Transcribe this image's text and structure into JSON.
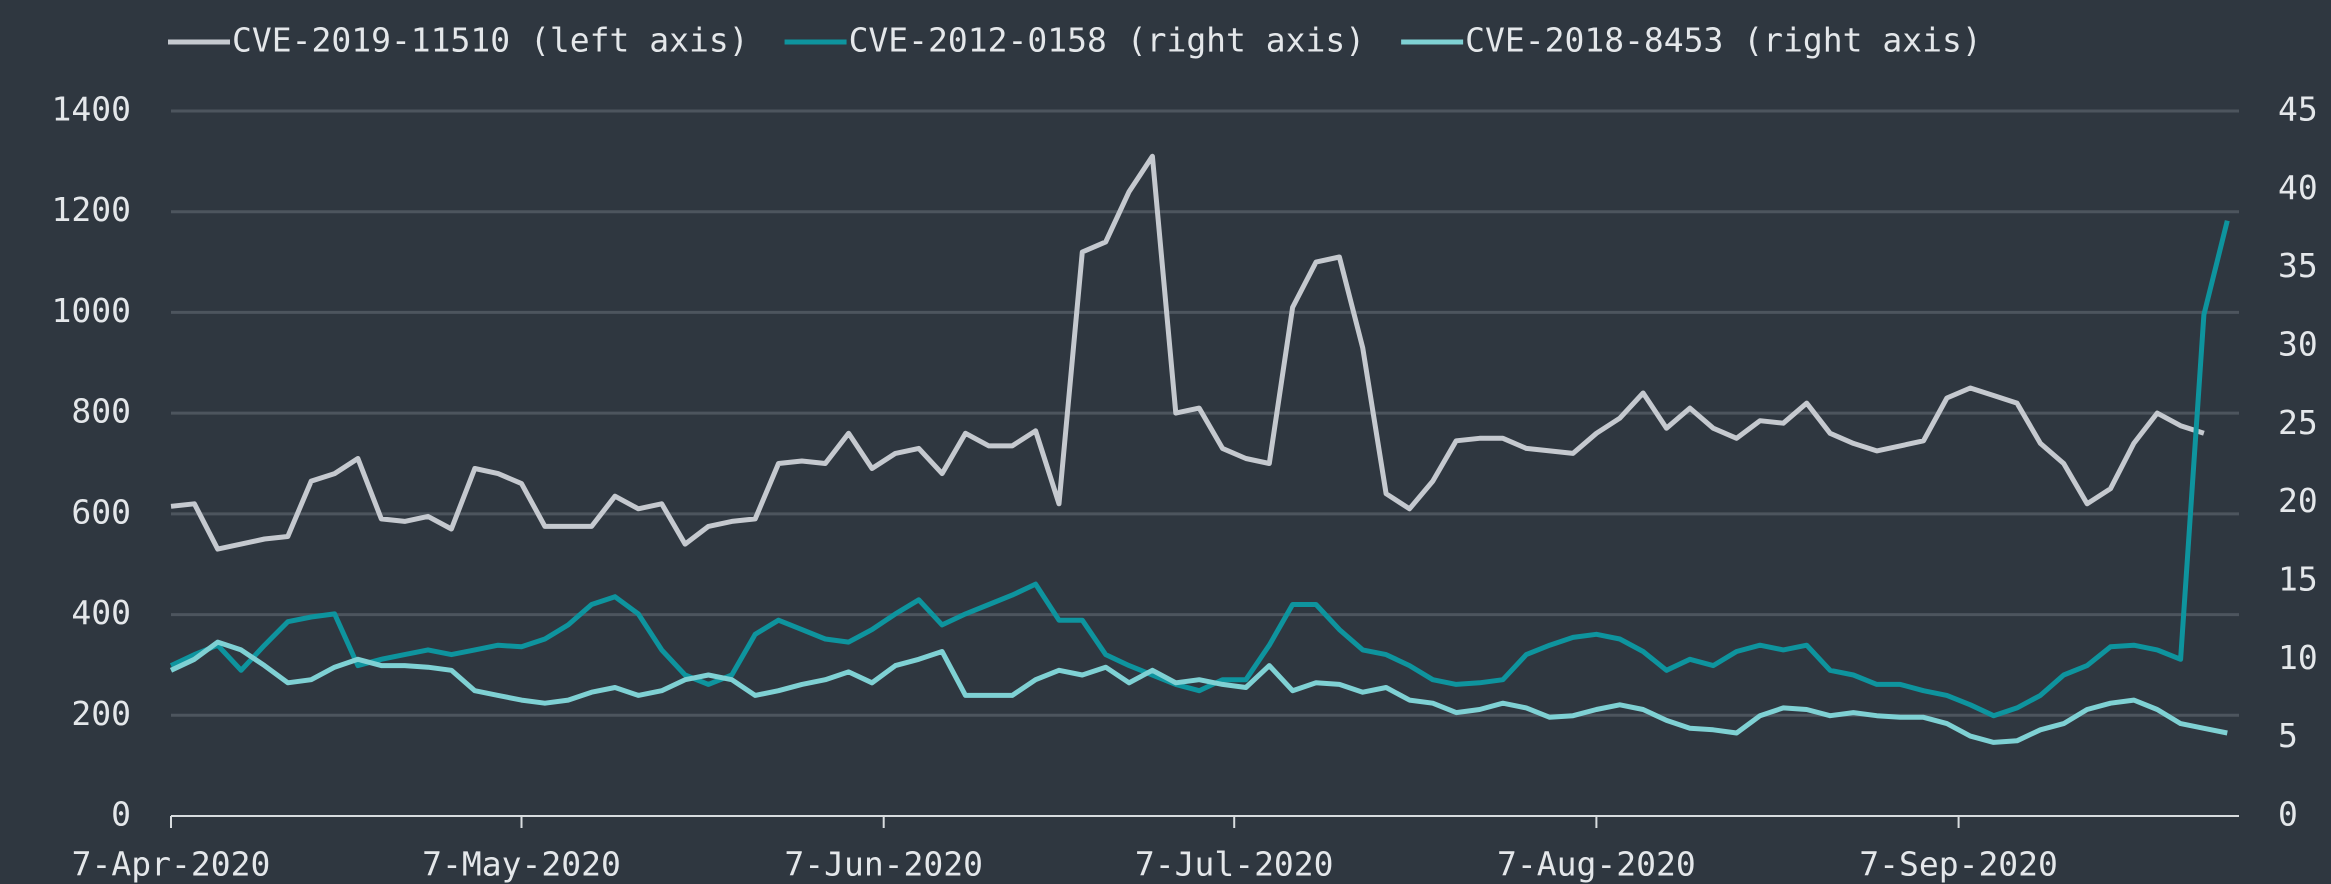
{
  "chart_data": {
    "type": "line",
    "legend": "top",
    "grid": true,
    "x": [
      "2020-04-07",
      "2020-04-09",
      "2020-04-11",
      "2020-04-13",
      "2020-04-15",
      "2020-04-17",
      "2020-04-19",
      "2020-04-21",
      "2020-04-23",
      "2020-04-25",
      "2020-04-27",
      "2020-04-29",
      "2020-05-01",
      "2020-05-03",
      "2020-05-05",
      "2020-05-07",
      "2020-05-09",
      "2020-05-11",
      "2020-05-13",
      "2020-05-15",
      "2020-05-17",
      "2020-05-19",
      "2020-05-21",
      "2020-05-23",
      "2020-05-25",
      "2020-05-27",
      "2020-05-29",
      "2020-05-31",
      "2020-06-02",
      "2020-06-04",
      "2020-06-06",
      "2020-06-08",
      "2020-06-10",
      "2020-06-12",
      "2020-06-14",
      "2020-06-16",
      "2020-06-18",
      "2020-06-20",
      "2020-06-22",
      "2020-06-24",
      "2020-06-26",
      "2020-06-28",
      "2020-06-30",
      "2020-07-02",
      "2020-07-04",
      "2020-07-06",
      "2020-07-08",
      "2020-07-10",
      "2020-07-12",
      "2020-07-14",
      "2020-07-16",
      "2020-07-18",
      "2020-07-20",
      "2020-07-22",
      "2020-07-24",
      "2020-07-26",
      "2020-07-28",
      "2020-07-30",
      "2020-08-01",
      "2020-08-03",
      "2020-08-05",
      "2020-08-07",
      "2020-08-09",
      "2020-08-11",
      "2020-08-13",
      "2020-08-15",
      "2020-08-17",
      "2020-08-19",
      "2020-08-21",
      "2020-08-23",
      "2020-08-25",
      "2020-08-27",
      "2020-08-29",
      "2020-08-31",
      "2020-09-02",
      "2020-09-04",
      "2020-09-06",
      "2020-09-08",
      "2020-09-10",
      "2020-09-12",
      "2020-09-14",
      "2020-09-16",
      "2020-09-18",
      "2020-09-20",
      "2020-09-22",
      "2020-09-24",
      "2020-09-26",
      "2020-09-28",
      "2020-09-30"
    ],
    "xlim": [
      "2020-04-07",
      "2020-10-01"
    ],
    "xticks": [
      {
        "value": "2020-04-07",
        "label": "7-Apr-2020"
      },
      {
        "value": "2020-05-07",
        "label": "7-May-2020"
      },
      {
        "value": "2020-06-07",
        "label": "7-Jun-2020"
      },
      {
        "value": "2020-07-07",
        "label": "7-Jul-2020"
      },
      {
        "value": "2020-08-07",
        "label": "7-Aug-2020"
      },
      {
        "value": "2020-09-07",
        "label": "7-Sep-2020"
      }
    ],
    "ylim": [
      0,
      1400
    ],
    "yticks": [
      0,
      200,
      400,
      600,
      800,
      1000,
      1200,
      1400
    ],
    "y2lim": [
      0,
      45
    ],
    "y2ticks": [
      0,
      5,
      10,
      15,
      20,
      25,
      30,
      35,
      40,
      45
    ],
    "series": [
      {
        "name": "CVE-2019-11510 (left axis)",
        "color": "#c5c9cf",
        "axis": "y",
        "values": [
          615,
          620,
          530,
          540,
          550,
          555,
          665,
          680,
          710,
          590,
          585,
          595,
          570,
          690,
          680,
          660,
          575,
          575,
          575,
          635,
          610,
          620,
          540,
          575,
          585,
          590,
          700,
          705,
          700,
          760,
          690,
          720,
          730,
          680,
          760,
          735,
          735,
          765,
          620,
          1120,
          1140,
          1240,
          1310,
          800,
          810,
          730,
          710,
          700,
          1010,
          1100,
          1110,
          930,
          640,
          610,
          665,
          745,
          750,
          750,
          730,
          725,
          720,
          760,
          790,
          840,
          770,
          810,
          770,
          750,
          785,
          780,
          820,
          760,
          740,
          725,
          735,
          745,
          830,
          850,
          835,
          820,
          740,
          700,
          620,
          650,
          740,
          800,
          775,
          760,
          null
        ]
      },
      {
        "name": "CVE-2012-0158 (right axis)",
        "color": "#0e949e",
        "axis": "y2",
        "values": [
          9.6,
          10.3,
          10.9,
          9.3,
          10.9,
          12.4,
          12.7,
          12.9,
          9.6,
          10,
          10.3,
          10.6,
          10.3,
          10.6,
          10.9,
          10.8,
          11.3,
          12.2,
          13.5,
          14,
          12.9,
          10.6,
          9,
          8.4,
          9,
          11.6,
          12.5,
          11.9,
          11.3,
          11.1,
          11.9,
          12.9,
          13.8,
          12.2,
          12.9,
          13.5,
          14.1,
          14.8,
          12.5,
          12.5,
          10.3,
          9.6,
          9,
          8.4,
          8,
          8.7,
          8.7,
          10.9,
          13.5,
          13.5,
          11.9,
          10.6,
          10.3,
          9.6,
          8.7,
          8.4,
          8.5,
          8.7,
          10.3,
          10.9,
          11.4,
          11.6,
          11.3,
          10.5,
          9.3,
          10,
          9.6,
          10.5,
          10.9,
          10.6,
          10.9,
          9.3,
          9,
          8.4,
          8.4,
          8,
          7.7,
          7.1,
          6.4,
          6.9,
          7.7,
          9,
          9.6,
          10.8,
          10.9,
          10.6,
          10,
          32,
          38
        ]
      },
      {
        "name": "CVE-2018-8453 (right axis)",
        "color": "#7fd1d4",
        "axis": "y2",
        "values": [
          9.3,
          10,
          11.1,
          10.6,
          9.6,
          8.5,
          8.7,
          9.5,
          10,
          9.6,
          9.6,
          9.5,
          9.3,
          8,
          7.7,
          7.4,
          7.2,
          7.4,
          7.9,
          8.2,
          7.7,
          8,
          8.7,
          9,
          8.7,
          7.7,
          8,
          8.4,
          8.7,
          9.2,
          8.5,
          9.6,
          10,
          10.5,
          7.7,
          7.7,
          7.7,
          8.7,
          9.3,
          9,
          9.5,
          8.5,
          9.3,
          8.5,
          8.7,
          8.4,
          8.2,
          9.6,
          8,
          8.5,
          8.4,
          7.9,
          8.2,
          7.4,
          7.2,
          6.6,
          6.8,
          7.2,
          6.9,
          6.3,
          6.4,
          6.8,
          7.1,
          6.8,
          6.1,
          5.6,
          5.5,
          5.3,
          6.4,
          6.9,
          6.8,
          6.4,
          6.6,
          6.4,
          6.3,
          6.3,
          5.9,
          5.1,
          4.7,
          4.8,
          5.5,
          5.9,
          6.8,
          7.2,
          7.4,
          6.8,
          5.9,
          5.6,
          5.3
        ]
      }
    ]
  }
}
